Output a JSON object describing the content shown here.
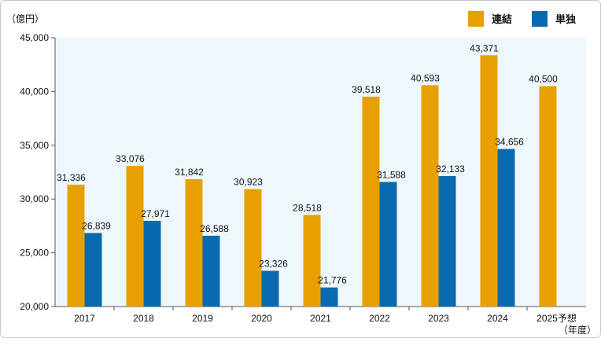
{
  "chart_data": {
    "type": "bar",
    "y_unit_label": "（億円）",
    "x_unit_label": "（年度）",
    "ylim": [
      20000,
      45000
    ],
    "y_ticks": [
      "20,000",
      "25,000",
      "30,000",
      "35,000",
      "40,000",
      "45,000"
    ],
    "y_tick_values": [
      20000,
      25000,
      30000,
      35000,
      40000,
      45000
    ],
    "categories": [
      "2017",
      "2018",
      "2019",
      "2020",
      "2021",
      "2022",
      "2023",
      "2024",
      "2025予想"
    ],
    "series": [
      {
        "name": "連結",
        "color": "#e8a000",
        "values": [
          31336,
          33076,
          31842,
          30923,
          28518,
          39518,
          40593,
          43371,
          40500
        ],
        "labels": [
          "31,336",
          "33,076",
          "31,842",
          "30,923",
          "28,518",
          "39,518",
          "40,593",
          "43,371",
          "40,500"
        ]
      },
      {
        "name": "単独",
        "color": "#0a6ab0",
        "values": [
          26839,
          27971,
          26588,
          23326,
          21776,
          31588,
          32133,
          34656,
          null
        ],
        "labels": [
          "26,839",
          "27,971",
          "26,588",
          "23,326",
          "21,776",
          "31,588",
          "32,133",
          "34,656",
          null
        ]
      }
    ],
    "plot_background": "#eef7fb",
    "legend_position": "top-right"
  }
}
